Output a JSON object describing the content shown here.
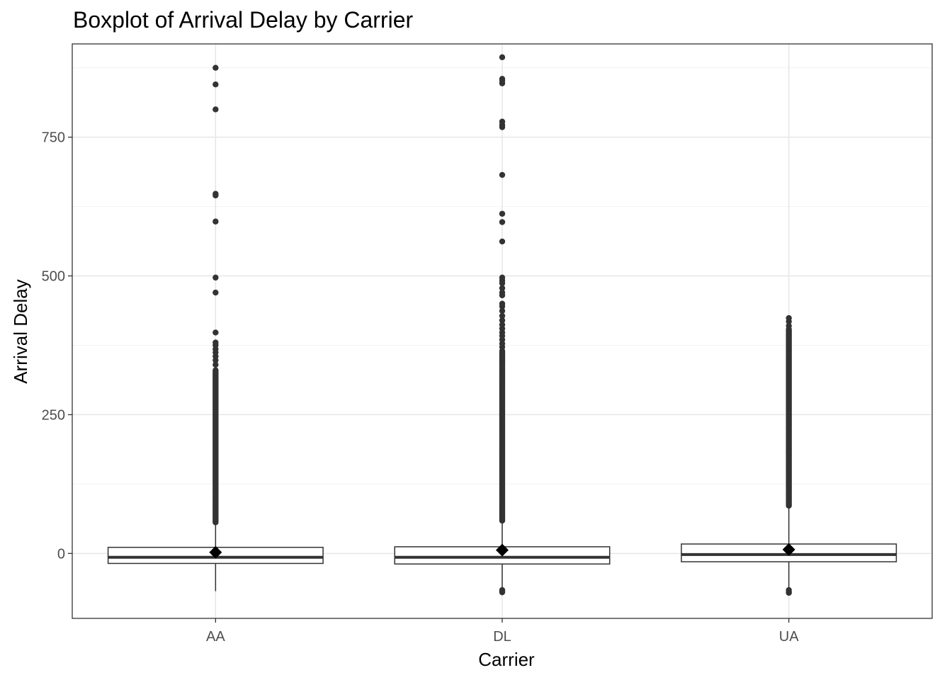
{
  "chart_data": {
    "type": "boxplot",
    "title": "Boxplot of Arrival Delay by Carrier",
    "xlabel": "Carrier",
    "ylabel": "Arrival Delay",
    "ylim": [
      -117,
      918
    ],
    "yticks": [
      0,
      250,
      500,
      750
    ],
    "grid": true,
    "categories": [
      "AA",
      "DL",
      "UA"
    ],
    "boxes": [
      {
        "category": "AA",
        "whisker_low": -68,
        "q1": -18,
        "median": -7,
        "q3": 11,
        "whisker_high": 55,
        "mean": 2,
        "dense_outliers_from": 56,
        "dense_outliers_to": 330,
        "outliers": [
          340,
          348,
          355,
          362,
          368,
          375,
          380,
          398,
          470,
          497,
          598,
          645,
          648,
          800,
          845,
          875
        ]
      },
      {
        "category": "DL",
        "whisker_low": -62,
        "q1": -19,
        "median": -7,
        "q3": 12,
        "whisker_high": 58,
        "mean": 6,
        "dense_outliers_from": 59,
        "dense_outliers_to": 365,
        "outliers": [
          -66,
          -68,
          -70,
          372,
          378,
          385,
          392,
          398,
          405,
          412,
          420,
          428,
          437,
          445,
          450,
          465,
          470,
          478,
          487,
          492,
          497,
          562,
          597,
          612,
          682,
          768,
          772,
          778,
          847,
          852,
          855,
          894
        ]
      },
      {
        "category": "UA",
        "whisker_low": -62,
        "q1": -15,
        "median": -2,
        "q3": 17,
        "whisker_high": 85,
        "mean": 7,
        "dense_outliers_from": 86,
        "dense_outliers_to": 405,
        "outliers": [
          -66,
          -69,
          -71,
          410,
          418,
          424
        ]
      }
    ]
  }
}
